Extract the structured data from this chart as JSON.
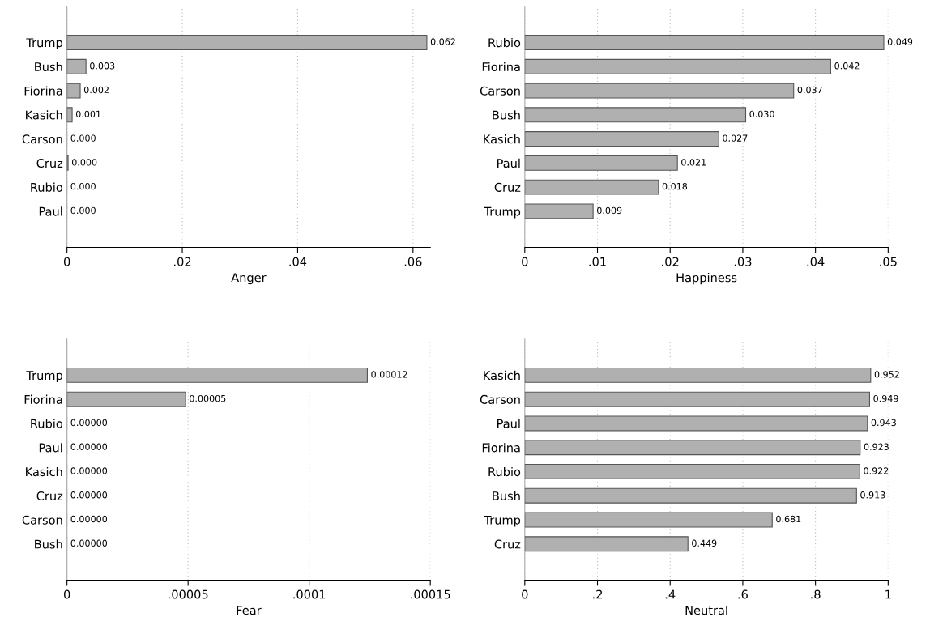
{
  "chart_data": [
    {
      "type": "bar",
      "orientation": "horizontal",
      "xlabel": "Anger",
      "categories": [
        "Trump",
        "Bush",
        "Fiorina",
        "Kasich",
        "Carson",
        "Cruz",
        "Rubio",
        "Paul"
      ],
      "values": [
        0.0624,
        0.0033,
        0.0023,
        0.0009,
        0,
        0.0002,
        0,
        0
      ],
      "value_labels": [
        "0.062",
        "0.003",
        "0.002",
        "0.001",
        "0.000",
        "0.000",
        "0.000",
        "0.000"
      ],
      "color": "#b0b0b0",
      "xlim": [
        0,
        0.063
      ],
      "xticks": [
        0,
        {
          "value": 0.02,
          "label": ".02"
        },
        {
          "value": 0.04,
          "label": ".04"
        },
        {
          "value": 0.06,
          "label": ".06"
        }
      ],
      "grid": "x"
    },
    {
      "type": "bar",
      "orientation": "horizontal",
      "xlabel": "Happiness",
      "categories": [
        "Rubio",
        "Fiorina",
        "Carson",
        "Bush",
        "Kasich",
        "Paul",
        "Cruz",
        "Trump"
      ],
      "values": [
        0.0494,
        0.0421,
        0.037,
        0.0304,
        0.0267,
        0.021,
        0.0184,
        0.0094
      ],
      "value_labels": [
        "0.049",
        "0.042",
        "0.037",
        "0.030",
        "0.027",
        "0.021",
        "0.018",
        "0.009"
      ],
      "color": "#b0b0b0",
      "xlim": [
        0,
        0.05
      ],
      "xticks": [
        0,
        {
          "value": 0.01,
          "label": ".01"
        },
        {
          "value": 0.02,
          "label": ".02"
        },
        {
          "value": 0.03,
          "label": ".03"
        },
        {
          "value": 0.04,
          "label": ".04"
        },
        {
          "value": 0.05,
          "label": ".05"
        }
      ],
      "grid": "x"
    },
    {
      "type": "bar",
      "orientation": "horizontal",
      "xlabel": "Fear",
      "categories": [
        "Trump",
        "Fiorina",
        "Rubio",
        "Paul",
        "Kasich",
        "Cruz",
        "Carson",
        "Bush"
      ],
      "values": [
        0.000124,
        4.9e-05,
        0,
        0,
        0,
        0,
        0,
        0
      ],
      "value_labels": [
        "0.00012",
        "0.00005",
        "0.00000",
        "0.00000",
        "0.00000",
        "0.00000",
        "0.00000",
        "0.00000"
      ],
      "color": "#b0b0b0",
      "xlim": [
        0,
        0.00015
      ],
      "xticks": [
        0,
        {
          "value": 5e-05,
          "label": ".00005"
        },
        {
          "value": 0.0001,
          "label": ".0001"
        },
        {
          "value": 0.00015,
          "label": ".00015"
        }
      ],
      "grid": "x"
    },
    {
      "type": "bar",
      "orientation": "horizontal",
      "xlabel": "Neutral",
      "categories": [
        "Kasich",
        "Carson",
        "Paul",
        "Fiorina",
        "Rubio",
        "Bush",
        "Trump",
        "Cruz"
      ],
      "values": [
        0.952,
        0.949,
        0.943,
        0.923,
        0.922,
        0.913,
        0.681,
        0.449
      ],
      "value_labels": [
        "0.952",
        "0.949",
        "0.943",
        "0.923",
        "0.922",
        "0.913",
        "0.681",
        "0.449"
      ],
      "color": "#b0b0b0",
      "xlim": [
        0,
        1
      ],
      "xticks": [
        0,
        {
          "value": 0.2,
          "label": ".2"
        },
        {
          "value": 0.4,
          "label": ".4"
        },
        {
          "value": 0.6,
          "label": ".6"
        },
        {
          "value": 0.8,
          "label": ".8"
        },
        {
          "value": 1,
          "label": "1"
        }
      ],
      "grid": "x"
    }
  ]
}
